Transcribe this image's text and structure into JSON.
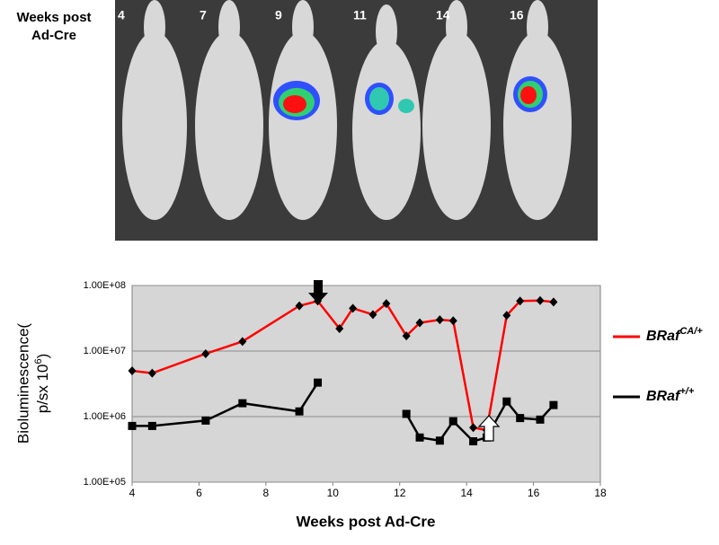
{
  "chart_data": {
    "type": "line",
    "image_title": [
      "Weeks post",
      "Ad-Cre"
    ],
    "image_labels": [
      "4",
      "7",
      "9",
      "11",
      "14",
      "16"
    ],
    "x_label": "Weeks post Ad-Cre",
    "y_label": [
      "Bioluminescence(",
      "p/sx 10",
      "6",
      ")"
    ],
    "x": [
      4,
      4.6,
      6.2,
      7.3,
      9.0,
      9.55,
      10.2,
      10.6,
      11.2,
      11.6,
      12.2,
      12.6,
      13.2,
      13.6,
      14.2,
      14.6,
      15.2,
      15.6,
      16.2,
      16.6
    ],
    "series": [
      {
        "name": "BRaf",
        "superscript": "CA/+",
        "color": "#ff0000",
        "marker": "diamond",
        "marker_color": "#000000",
        "values": [
          5000000,
          4600000,
          9100000,
          14000000,
          49000000,
          58000000,
          22000000,
          45000000,
          36000000,
          53000000,
          17000000,
          27000000,
          30000000,
          29000000,
          680000,
          620000,
          35000000,
          58000000,
          59000000,
          56000000
        ]
      },
      {
        "name": "BRaf",
        "superscript": "+/+",
        "color": "#000000",
        "marker": "square",
        "marker_color": "#000000",
        "values": [
          720000,
          720000,
          870000,
          1600000,
          1200000,
          3300000,
          null,
          null,
          null,
          null,
          1100000,
          480000,
          430000,
          850000,
          420000,
          480000,
          1700000,
          950000,
          900000,
          1500000
        ]
      }
    ],
    "xlim": [
      4,
      18
    ],
    "xticks": [
      4,
      6,
      8,
      10,
      12,
      14,
      16,
      18
    ],
    "ylim": [
      100000,
      100000000
    ],
    "log_y": true,
    "yticks": [
      {
        "value": 100000,
        "label": "1.00E+05"
      },
      {
        "value": 1000000,
        "label": "1.00E+06"
      },
      {
        "value": 10000000,
        "label": "1.00E+07"
      },
      {
        "value": 100000000,
        "label": "1.00E+08"
      }
    ],
    "grid": true,
    "plot_background": "#d6d6d6",
    "legend": "right"
  }
}
